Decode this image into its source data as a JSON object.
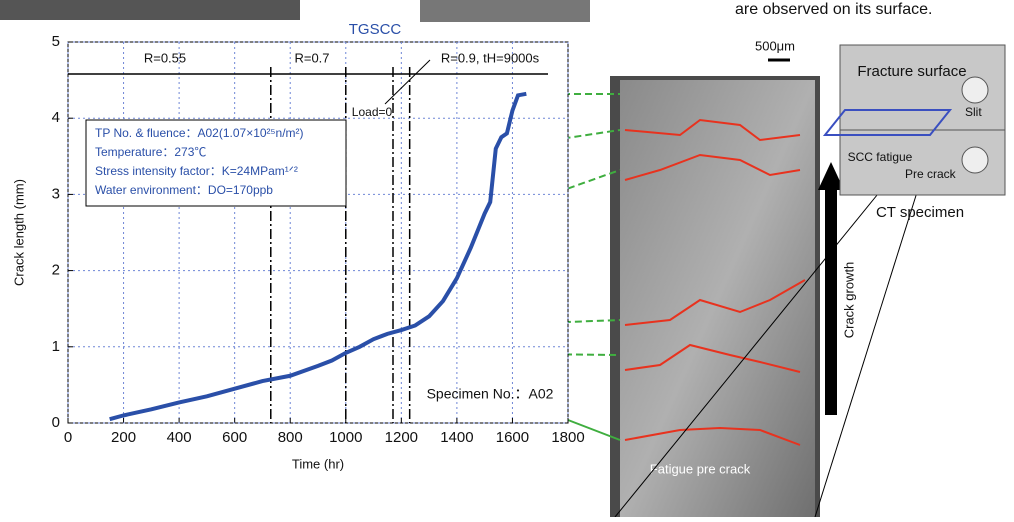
{
  "header": {
    "left_label": "TGSCC",
    "right_text": "are observed on its surface."
  },
  "chart_data": {
    "type": "line",
    "x_label": "Time (hr)",
    "y_label": "Crack length (mm)",
    "xlim": [
      0,
      1800
    ],
    "ylim": [
      0,
      5
    ],
    "xticks": [
      0,
      200,
      400,
      600,
      800,
      1000,
      1200,
      1400,
      1600,
      1800
    ],
    "yticks": [
      0,
      1,
      2,
      3,
      4,
      5
    ],
    "grid": true,
    "series": [
      {
        "color": "#2a4fa8",
        "x": [
          150,
          200,
          300,
          400,
          500,
          600,
          700,
          800,
          900,
          950,
          1000,
          1050,
          1100,
          1150,
          1200,
          1250,
          1300,
          1350,
          1400,
          1450,
          1500,
          1520,
          1540,
          1560,
          1580,
          1600,
          1620,
          1650
        ],
        "values": [
          0.05,
          0.1,
          0.18,
          0.27,
          0.35,
          0.45,
          0.55,
          0.62,
          0.75,
          0.82,
          0.92,
          1.0,
          1.1,
          1.17,
          1.22,
          1.28,
          1.4,
          1.6,
          1.9,
          2.3,
          2.75,
          2.9,
          3.6,
          3.75,
          3.8,
          4.1,
          4.3,
          4.32
        ]
      }
    ],
    "vlines": [
      730,
      1000,
      1170,
      1230
    ],
    "regions": [
      "R=0.55",
      "R=0.7",
      "R=0.9, tH=9000s"
    ],
    "load_label": "Load=0",
    "info": [
      "TP No. & fluence：A02(1.07×10²⁵n/m²)",
      "Temperature：273℃",
      "Stress intensity factor：K=24MPam¹ᐟ²",
      "Water environment：DO=170ppb"
    ],
    "specimen": "Specimen No.：A02"
  },
  "micrograph": {
    "scale": "500μm",
    "bottom_label": "Fatigue pre crack",
    "arrow_label": "Crack growth"
  },
  "diagram": {
    "fracture": "Fracture surface",
    "slit": "Slit",
    "scc": "SCC fatigue",
    "pre": "Pre crack",
    "title": "CT specimen"
  }
}
